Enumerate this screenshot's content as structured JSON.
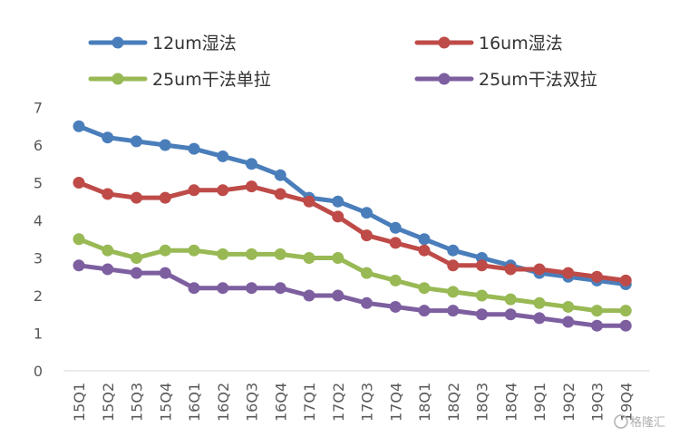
{
  "chart_data": {
    "type": "line",
    "title": "",
    "xlabel": "",
    "ylabel": "",
    "ylim": [
      0,
      7
    ],
    "yticks": [
      0,
      1,
      2,
      3,
      4,
      5,
      6,
      7
    ],
    "grid": false,
    "legend_position": "top",
    "categories": [
      "15Q1",
      "15Q2",
      "15Q3",
      "15Q4",
      "16Q1",
      "16Q2",
      "16Q3",
      "16Q4",
      "17Q1",
      "17Q2",
      "17Q3",
      "17Q4",
      "18Q1",
      "18Q2",
      "18Q3",
      "18Q4",
      "19Q1",
      "19Q2",
      "19Q3",
      "19Q4"
    ],
    "series": [
      {
        "name": "12um湿法",
        "color": "#4a7ebb",
        "values": [
          6.5,
          6.2,
          6.1,
          6.0,
          5.9,
          5.7,
          5.5,
          5.2,
          4.6,
          4.5,
          4.2,
          3.8,
          3.5,
          3.2,
          3.0,
          2.8,
          2.6,
          2.5,
          2.4,
          2.3
        ]
      },
      {
        "name": "16um湿法",
        "color": "#be4b48",
        "values": [
          5.0,
          4.7,
          4.6,
          4.6,
          4.8,
          4.8,
          4.9,
          4.7,
          4.5,
          4.1,
          3.6,
          3.4,
          3.2,
          2.8,
          2.8,
          2.7,
          2.7,
          2.6,
          2.5,
          2.4
        ]
      },
      {
        "name": "25um干法单拉",
        "color": "#98b954",
        "values": [
          3.5,
          3.2,
          3.0,
          3.2,
          3.2,
          3.1,
          3.1,
          3.1,
          3.0,
          3.0,
          2.6,
          2.4,
          2.2,
          2.1,
          2.0,
          1.9,
          1.8,
          1.7,
          1.6,
          1.6
        ]
      },
      {
        "name": "25um干法双拉",
        "color": "#7d5fa0",
        "values": [
          2.8,
          2.7,
          2.6,
          2.6,
          2.2,
          2.2,
          2.2,
          2.2,
          2.0,
          2.0,
          1.8,
          1.7,
          1.6,
          1.6,
          1.5,
          1.5,
          1.4,
          1.3,
          1.2,
          1.2
        ]
      }
    ]
  },
  "watermark": "格隆汇"
}
